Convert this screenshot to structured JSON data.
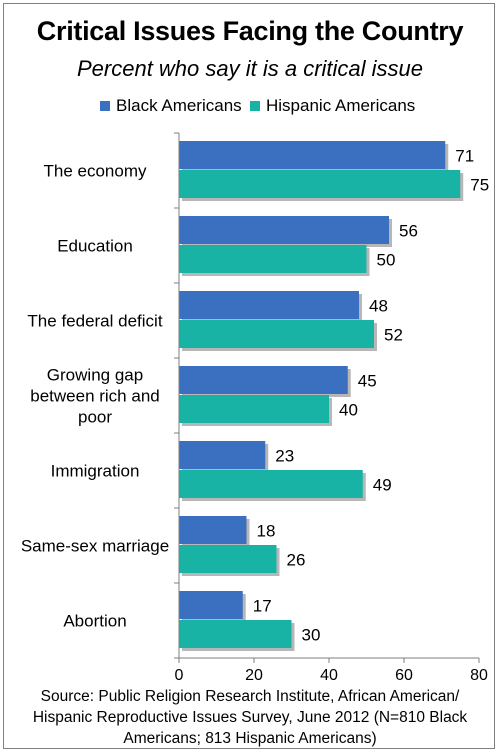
{
  "chart_data": {
    "type": "bar",
    "orientation": "horizontal",
    "title": "Critical Issues Facing the Country",
    "subtitle": "Percent who say it is a critical issue",
    "categories": [
      [
        "The economy"
      ],
      [
        "Education"
      ],
      [
        "The federal deficit"
      ],
      [
        "Growing gap",
        "between rich and",
        "poor"
      ],
      [
        "Immigration"
      ],
      [
        "Same-sex marriage"
      ],
      [
        "Abortion"
      ]
    ],
    "series": [
      {
        "name": "Black Americans",
        "color": "#3b6fbf",
        "values": [
          71,
          56,
          48,
          45,
          23,
          18,
          17
        ]
      },
      {
        "name": "Hispanic Americans",
        "color": "#18b3a4",
        "values": [
          75,
          50,
          52,
          40,
          49,
          26,
          30
        ]
      }
    ],
    "xlim": [
      0,
      80
    ],
    "xticks": [
      "0",
      "20",
      "40",
      "60",
      "80"
    ],
    "legend_position": "top",
    "grid": false,
    "source": "Source: Public Religion Research Institute, African American/ Hispanic Reproductive Issues Survey, June 2012 (N=810 Black Americans; 813 Hispanic Americans)",
    "source_lines": [
      "Source: Public Religion Research Institute, African American/",
      "Hispanic Reproductive Issues Survey, June 2012 (N=810 Black",
      "Americans; 813 Hispanic Americans)"
    ]
  }
}
